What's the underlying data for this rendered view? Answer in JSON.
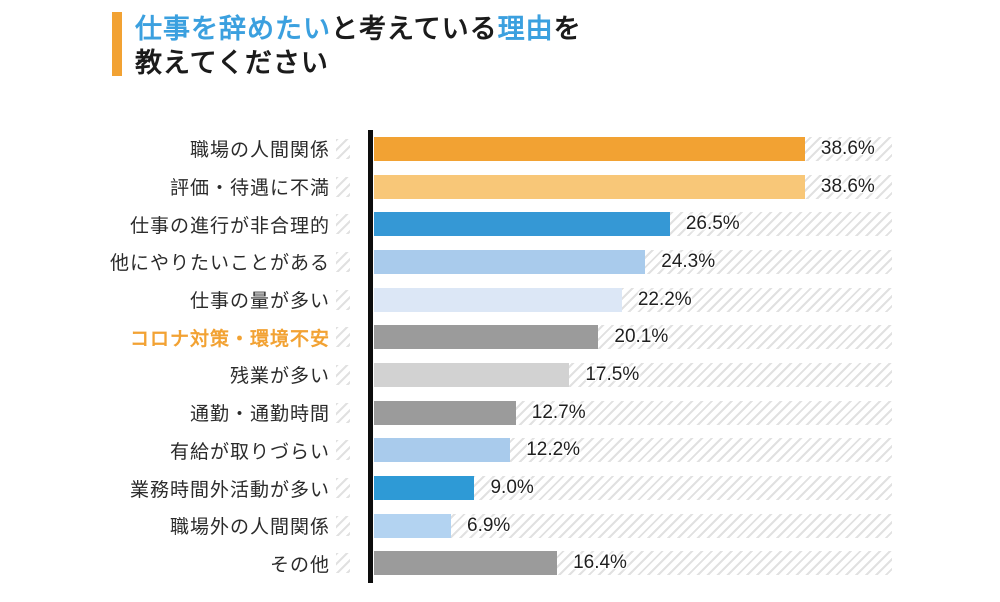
{
  "title": {
    "line1_segments": [
      {
        "text": "仕事を辞めたい",
        "emphasis": true
      },
      {
        "text": "と考えている",
        "emphasis": false
      },
      {
        "text": "理由",
        "emphasis": true
      },
      {
        "text": "を",
        "emphasis": false
      }
    ],
    "line2": "教えてください"
  },
  "colors": {
    "accent_orange": "#F2A233",
    "title_emphasis_blue": "#3BA0DF",
    "title_text": "#1B1B1B",
    "label_text": "#2B2B2B",
    "highlight_label": "#F2A233",
    "percent_text": "#1F1F1F",
    "axis": "#0D0D0D",
    "hatch_stripe": "#E1E1E1"
  },
  "chart_data": {
    "type": "bar",
    "orientation": "horizontal",
    "title": "仕事を辞めたいと考えている理由を教えてください",
    "unit": "%",
    "xlim": [
      0,
      46.4
    ],
    "grid": false,
    "legend": false,
    "categories": [
      "職場の人間関係",
      "評価・待遇に不満",
      "仕事の進行が非合理的",
      "他にやりたいことがある",
      "仕事の量が多い",
      "コロナ対策・環境不安",
      "残業が多い",
      "通勤・通勤時間",
      "有給が取りづらい",
      "業務時間外活動が多い",
      "職場外の人間関係",
      "その他"
    ],
    "values": [
      38.6,
      38.6,
      26.5,
      24.3,
      22.2,
      20.1,
      17.5,
      12.7,
      12.2,
      9.0,
      6.9,
      16.4
    ],
    "value_labels": [
      "38.6%",
      "38.6%",
      "26.5%",
      "24.3%",
      "22.2%",
      "20.1%",
      "17.5%",
      "12.7%",
      "12.2%",
      "9.0%",
      "6.9%",
      "16.4%"
    ],
    "bar_colors": [
      "#F2A233",
      "#F8C778",
      "#3598D5",
      "#A9CBEC",
      "#DCE7F6",
      "#9B9B9B",
      "#D2D2D2",
      "#9B9B9B",
      "#A9CBEC",
      "#2E9AD6",
      "#B3D3F1",
      "#9B9B9B"
    ],
    "highlight_index": 5
  }
}
